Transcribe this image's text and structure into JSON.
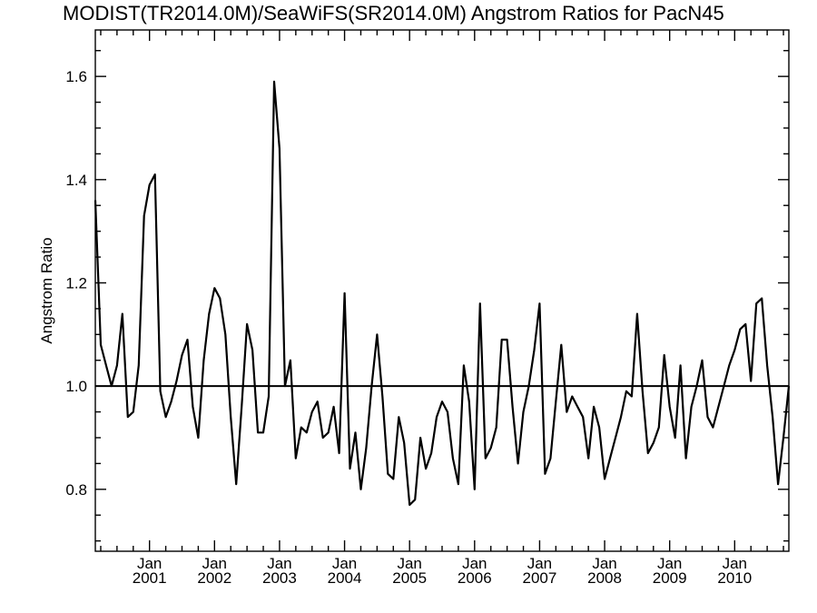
{
  "chart_data": {
    "type": "line",
    "title": "MODIST(TR2014.0M)/SeaWiFS(SR2014.0M)  Angstrom Ratios for PacN45",
    "xlabel": "",
    "ylabel": "Angstrom Ratio",
    "ylim": [
      0.68,
      1.69
    ],
    "y_ticks": [
      0.8,
      1.0,
      1.2,
      1.4,
      1.6
    ],
    "y_tick_labels": [
      "0.8",
      "1.0",
      "1.2",
      "1.4",
      "1.6"
    ],
    "xlim": [
      "2000-03",
      "2010-11"
    ],
    "x_tick_labels": [
      {
        "month": "Jan",
        "year": "2001"
      },
      {
        "month": "Jan",
        "year": "2002"
      },
      {
        "month": "Jan",
        "year": "2003"
      },
      {
        "month": "Jan",
        "year": "2004"
      },
      {
        "month": "Jan",
        "year": "2005"
      },
      {
        "month": "Jan",
        "year": "2006"
      },
      {
        "month": "Jan",
        "year": "2007"
      },
      {
        "month": "Jan",
        "year": "2008"
      },
      {
        "month": "Jan",
        "year": "2009"
      },
      {
        "month": "Jan",
        "year": "2010"
      }
    ],
    "reference_line": 1.0,
    "grid": false,
    "series": [
      {
        "x_start": "2000-03",
        "x_step": "1 month",
        "values": [
          1.36,
          1.08,
          1.04,
          1.0,
          1.04,
          1.14,
          0.94,
          0.95,
          1.04,
          1.33,
          1.39,
          1.41,
          0.99,
          0.94,
          0.97,
          1.01,
          1.06,
          1.09,
          0.96,
          0.9,
          1.05,
          1.14,
          1.19,
          1.17,
          1.1,
          0.94,
          0.81,
          0.96,
          1.12,
          1.07,
          0.91,
          0.91,
          0.98,
          1.59,
          1.46,
          1.0,
          1.05,
          0.86,
          0.92,
          0.91,
          0.95,
          0.97,
          0.9,
          0.91,
          0.96,
          0.87,
          1.18,
          0.84,
          0.91,
          0.8,
          0.88,
          1.0,
          1.1,
          0.98,
          0.83,
          0.82,
          0.94,
          0.89,
          0.77,
          0.78,
          0.9,
          0.84,
          0.87,
          0.94,
          0.97,
          0.95,
          0.86,
          0.81,
          1.04,
          0.97,
          0.8,
          1.16,
          0.86,
          0.88,
          0.92,
          1.09,
          1.09,
          0.96,
          0.85,
          0.95,
          1.0,
          1.07,
          1.16,
          0.83,
          0.86,
          0.97,
          1.08,
          0.95,
          0.98,
          0.96,
          0.94,
          0.86,
          0.96,
          0.92,
          0.82,
          0.86,
          0.9,
          0.94,
          0.99,
          0.98,
          1.14,
          0.99,
          0.87,
          0.89,
          0.92,
          1.06,
          0.96,
          0.9,
          1.04,
          0.86,
          0.96,
          1.0,
          1.05,
          0.94,
          0.92,
          0.96,
          1.0,
          1.04,
          1.07,
          1.11,
          1.12,
          1.01,
          1.16,
          1.17,
          1.04,
          0.94,
          0.81,
          0.9,
          1.0
        ]
      }
    ]
  }
}
